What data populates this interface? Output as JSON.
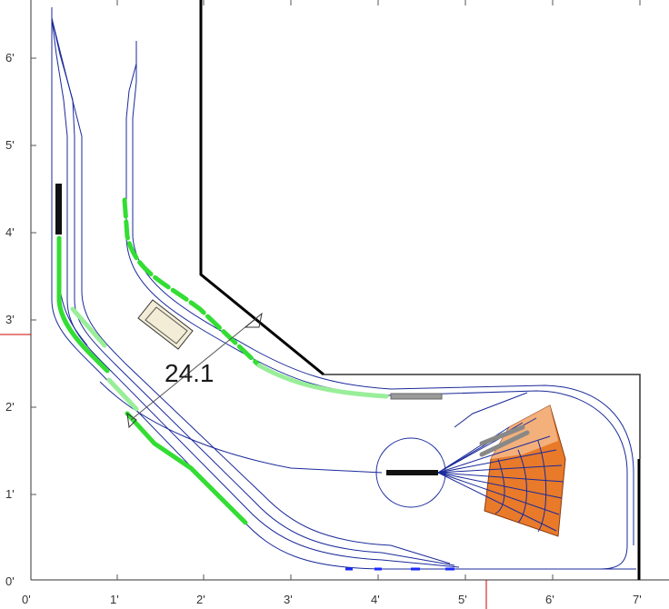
{
  "ruler": {
    "x_ticks": [
      "0'",
      "1'",
      "2'",
      "3'",
      "4'",
      "5'",
      "6'",
      "7'"
    ],
    "y_ticks": [
      "0'",
      "1'",
      "2'",
      "3'",
      "4'",
      "5'",
      "6'"
    ]
  },
  "dimension": {
    "label": "24.1"
  },
  "colors": {
    "track": "#1a2a9a",
    "highlight": "#33dd33",
    "highlight_light": "#99ee99",
    "wall": "#000000",
    "roundhouse": "#e87a2a",
    "roundhouse_light": "#f3b07a",
    "ruler_mark": "#cc0000"
  }
}
